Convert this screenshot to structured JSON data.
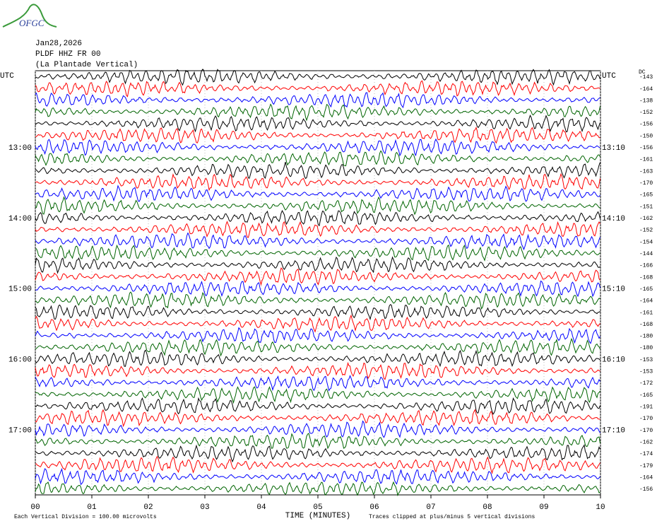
{
  "header": {
    "logo_text": "OFGC",
    "date": "Jan28,2026",
    "station": "PLDF HHZ FR 00",
    "location": "(La Plantade Vertical)"
  },
  "chart_data": {
    "type": "helicorder",
    "left_labels": [
      "UTC",
      null,
      null,
      null,
      null,
      null,
      "13:00",
      null,
      null,
      null,
      null,
      null,
      "14:00",
      null,
      null,
      null,
      null,
      null,
      "15:00",
      null,
      null,
      null,
      null,
      null,
      "16:00",
      null,
      null,
      null,
      null,
      null,
      "17:00",
      null,
      null,
      null,
      null,
      null
    ],
    "right_labels": [
      "UTC",
      null,
      null,
      null,
      null,
      null,
      "13:10",
      null,
      null,
      null,
      null,
      null,
      "14:10",
      null,
      null,
      null,
      null,
      null,
      "15:10",
      null,
      null,
      null,
      null,
      null,
      "16:10",
      null,
      null,
      null,
      null,
      null,
      "17:10",
      null,
      null,
      null,
      null,
      null
    ],
    "dc_title": "DC",
    "dc_values": [
      -143,
      -164,
      -138,
      -152,
      -156,
      -150,
      -156,
      -161,
      -163,
      -170,
      -165,
      -151,
      -162,
      -152,
      -154,
      -144,
      -166,
      -168,
      -165,
      -164,
      -161,
      -168,
      -180,
      -180,
      -153,
      -153,
      -172,
      -165,
      -191,
      -170,
      -170,
      -162,
      -174,
      -179,
      -164,
      -156
    ],
    "trace_colors": [
      "#000000",
      "#ff0000",
      "#0000ff",
      "#006400"
    ],
    "xlim": [
      0,
      10
    ],
    "xticks": [
      {
        "value": 0,
        "label": "00"
      },
      {
        "value": 1,
        "label": "01"
      },
      {
        "value": 2,
        "label": "02"
      },
      {
        "value": 3,
        "label": "03"
      },
      {
        "value": 4,
        "label": "04"
      },
      {
        "value": 5,
        "label": "05"
      },
      {
        "value": 6,
        "label": "06"
      },
      {
        "value": 7,
        "label": "07"
      },
      {
        "value": 8,
        "label": "08"
      },
      {
        "value": 9,
        "label": "09"
      },
      {
        "value": 10,
        "label": "10"
      }
    ],
    "x_label": "TIME (MINUTES)",
    "scale_note": "Each Vertical Division =  100.00 microvolts",
    "clip_note": "Traces clipped at plus/minus 5 vertical divisions",
    "grid": true
  }
}
